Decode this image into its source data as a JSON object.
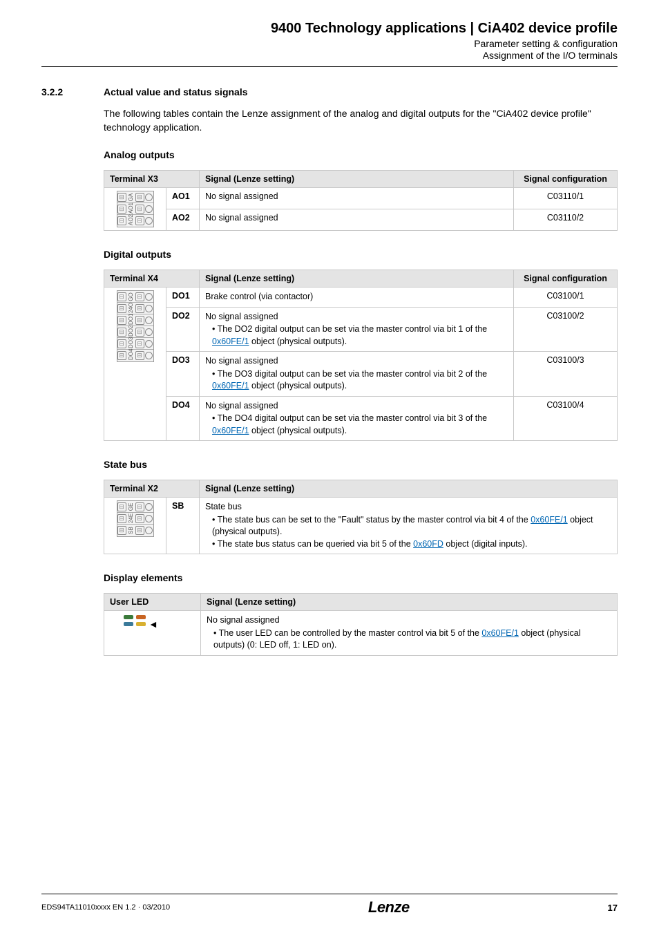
{
  "header": {
    "title": "9400 Technology applications | CiA402 device profile",
    "sub1": "Parameter setting & configuration",
    "sub2": "Assignment of the I/O terminals"
  },
  "section": {
    "num": "3.2.2",
    "title": "Actual value and status signals"
  },
  "intro": "The following tables contain the Lenze assignment of the analog and digital outputs for the \"CiA402 device profile\" technology application.",
  "analog": {
    "heading": "Analog outputs",
    "colA": "Terminal X3",
    "colB": "Signal (Lenze setting)",
    "colC": "Signal configuration",
    "rows": [
      {
        "chan": "AO1",
        "sig": "No signal assigned",
        "cfg": "C03110/1"
      },
      {
        "chan": "AO2",
        "sig": "No signal assigned",
        "cfg": "C03110/2"
      }
    ],
    "labels": [
      "GA",
      "AO1",
      "AO2"
    ]
  },
  "digital": {
    "heading": "Digital outputs",
    "colA": "Terminal X4",
    "colB": "Signal (Lenze setting)",
    "colC": "Signal configuration",
    "rows": [
      {
        "chan": "DO1",
        "sig": "Brake control (via contactor)",
        "cfg": "C03100/1",
        "bullets": []
      },
      {
        "chan": "DO2",
        "sig": "No signal assigned",
        "cfg": "C03100/2",
        "bullets": [
          {
            "pre": "The DO2 digital output can be set via the master control via bit 1 of the ",
            "link": "0x60FE/1",
            "post": " object (physical outputs)."
          }
        ]
      },
      {
        "chan": "DO3",
        "sig": "No signal assigned",
        "cfg": "C03100/3",
        "bullets": [
          {
            "pre": "The DO3 digital output can be set via the master control via bit 2 of the ",
            "link": "0x60FE/1",
            "post": " object (physical outputs)."
          }
        ]
      },
      {
        "chan": "DO4",
        "sig": "No signal assigned",
        "cfg": "C03100/4",
        "bullets": [
          {
            "pre": "The DO4 digital output can be set via the master control via bit 3 of the ",
            "link": "0x60FE/1",
            "post": " object (physical outputs)."
          }
        ]
      }
    ],
    "labels": [
      "GO",
      "24O",
      "DO1",
      "DO2",
      "DO3",
      "DO4"
    ]
  },
  "statebus": {
    "heading": "State bus",
    "colA": "Terminal X2",
    "colB": "Signal (Lenze setting)",
    "chan": "SB",
    "sig": "State bus",
    "bullets": [
      {
        "pre": "The state bus can be set to the \"Fault\" status by the master control via bit 4 of the ",
        "link": "0x60FE/1",
        "post": " object (physical outputs)."
      },
      {
        "pre": "The state bus status can be queried via bit 5 of the ",
        "link": "0x60FD",
        "post": " object (digital inputs)."
      }
    ],
    "labels": [
      "GE",
      "24E",
      "SB"
    ]
  },
  "display": {
    "heading": "Display elements",
    "colA": "User LED",
    "colB": "Signal (Lenze setting)",
    "sig": "No signal assigned",
    "bullet": {
      "pre": "The user LED can be controlled by the master control via bit 5 of the ",
      "link": "0x60FE/1",
      "post": " object (physical outputs) (0: LED off, 1: LED on)."
    },
    "ledcolors": {
      "row1a": "#3a7a3a",
      "row1b": "#c86422",
      "row2a": "#3a7a9a",
      "row2b": "#d8b030"
    }
  },
  "footer": {
    "doc": "EDS94TA11010xxxx EN 1.2 · 03/2010",
    "logo": "Lenze",
    "page": "17"
  }
}
